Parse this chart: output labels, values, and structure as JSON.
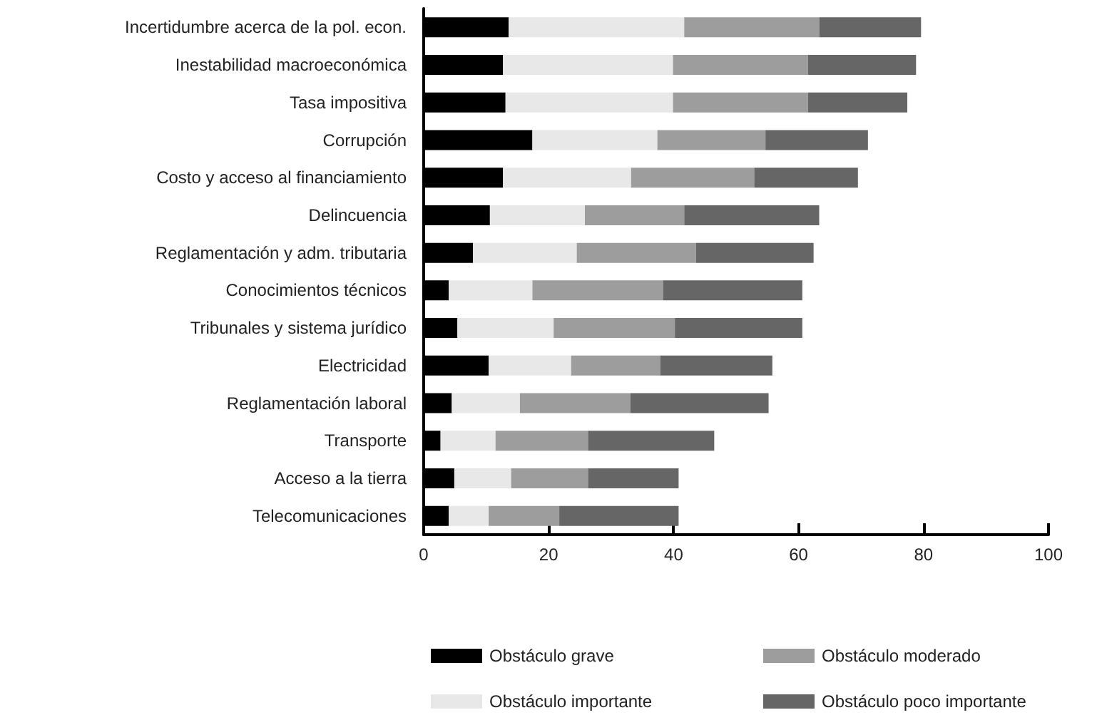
{
  "chart_data": {
    "type": "bar",
    "orientation": "horizontal",
    "stacked": true,
    "categories": [
      "Incertidumbre acerca de la pol. econ.",
      "Inestabilidad macroeconómica",
      "Tasa impositiva",
      "Corrupción",
      "Costo y acceso al financiamiento",
      "Delincuencia",
      "Reglamentación y adm. tributaria",
      "Conocimientos técnicos",
      "Tribunales y sistema jurídico",
      "Electricidad",
      "Reglamentación laboral",
      "Transporte",
      "Acceso a la tierra",
      "Telecomunicaciones"
    ],
    "series": [
      {
        "name": "Obstáculo grave",
        "color": "#000000",
        "values": [
          13.6,
          12.7,
          13.1,
          17.4,
          12.7,
          10.6,
          7.9,
          4.0,
          5.4,
          10.4,
          4.5,
          2.7,
          4.9,
          4.0
        ]
      },
      {
        "name": "Obstáculo importante",
        "color": "#e8e8e8",
        "values": [
          28.1,
          27.2,
          26.8,
          20.0,
          20.5,
          15.2,
          16.6,
          13.4,
          15.4,
          13.2,
          10.9,
          8.8,
          9.1,
          6.4
        ]
      },
      {
        "name": "Obstáculo moderado",
        "color": "#9d9d9d",
        "values": [
          21.6,
          21.6,
          21.6,
          17.3,
          19.7,
          15.9,
          19.1,
          20.9,
          19.4,
          14.3,
          17.7,
          14.8,
          12.3,
          11.3
        ]
      },
      {
        "name": "Obstáculo poco importante",
        "color": "#666666",
        "values": [
          16.3,
          17.3,
          15.9,
          16.4,
          16.6,
          21.6,
          18.8,
          22.3,
          20.4,
          17.9,
          22.1,
          20.2,
          14.5,
          19.1
        ]
      }
    ],
    "xlim": [
      0,
      100
    ],
    "xticks": [
      0,
      20,
      40,
      60,
      80,
      100
    ],
    "grid": false,
    "legend": "bottom"
  }
}
